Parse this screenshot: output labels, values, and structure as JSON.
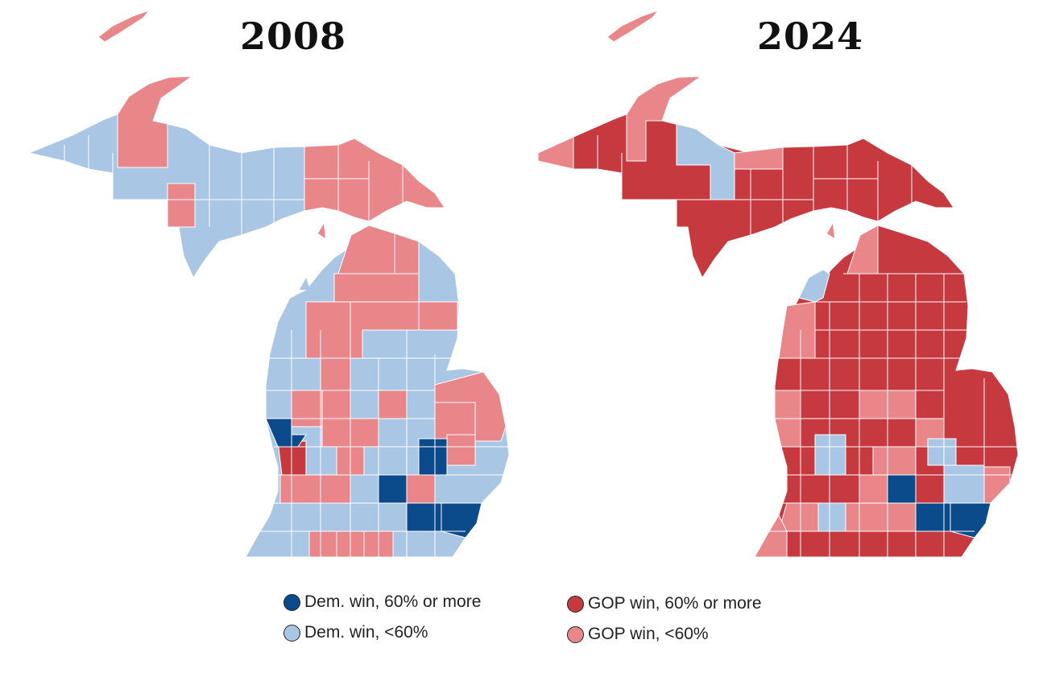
{
  "maps": [
    {
      "title": "2008"
    },
    {
      "title": "2024"
    }
  ],
  "legend": [
    {
      "label": "Dem. win, 60% or more",
      "color": "#0b4a8b"
    },
    {
      "label": "Dem. win, <60%",
      "color": "#a9c6e4"
    },
    {
      "label": "GOP win, 60% or more",
      "color": "#c63a3f"
    },
    {
      "label": "GOP win, <60%",
      "color": "#e9868a"
    }
  ],
  "colors": {
    "dem_strong": "#0b4a8b",
    "dem_lean": "#a9c6e4",
    "gop_strong": "#c63a3f",
    "gop_lean": "#e9868a",
    "border": "#ffffff"
  }
}
